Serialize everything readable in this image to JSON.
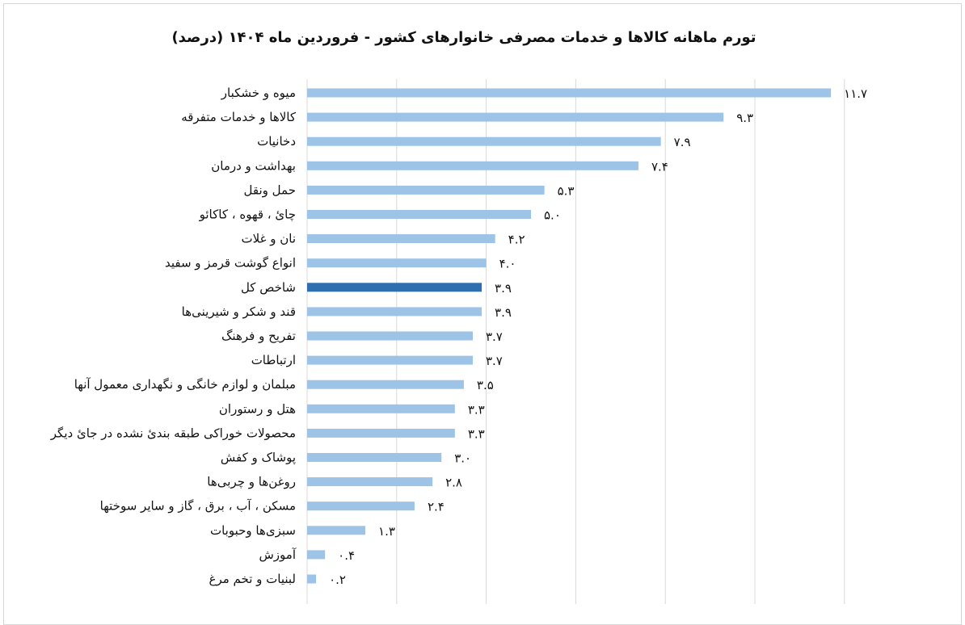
{
  "chart_data": {
    "type": "bar",
    "orientation": "horizontal",
    "title": "تورم ماهانه کالاها و خدمات مصرفی خانوارهای کشور - فروردین ماه ۱۴۰۴ (درصد)",
    "xlabel": "",
    "ylabel": "",
    "xlim": [
      0,
      12
    ],
    "grid": true,
    "legend": "none",
    "bar_color": "#9dc3e6",
    "highlight_color": "#2e6fb0",
    "highlight_index": 8,
    "categories": [
      "میوه و خشکبار",
      "کالاها و خدمات متفرقه",
      "دخانیات",
      "بهداشت و درمان",
      "حمل ونقل",
      "چائ ، قهوه ، کاکائو",
      "نان و غلات",
      "انواع گوشت قرمز و سفید",
      "شاخص کل",
      "قند و شکر و شیرینی‌ها",
      "تفریح و فرهنگ",
      "ارتباطات",
      "مبلمان و لوازم خانگی و نگهداری معمول آنها",
      "هتل و رستوران",
      "محصولات خوراکی طبقه بندیٔ نشده در جائ دیگر",
      "پوشاک و کفش",
      "روغن‌ها و چربی‌ها",
      "مسکن ، آب ، برق ، گاز و سایر سوختها",
      "سبزی‌ها وحبوبات",
      "آموزش",
      "لبنیات و تخم مرغ"
    ],
    "values": [
      11.7,
      9.3,
      7.9,
      7.4,
      5.3,
      5.0,
      4.2,
      4.0,
      3.9,
      3.9,
      3.7,
      3.7,
      3.5,
      3.3,
      3.3,
      3.0,
      2.8,
      2.4,
      1.3,
      0.4,
      0.2
    ],
    "value_labels": [
      "۱۱.۷",
      "۹.۳",
      "۷.۹",
      "۷.۴",
      "۵.۳",
      "۵.۰",
      "۴.۲",
      "۴.۰",
      "۳.۹",
      "۳.۹",
      "۳.۷",
      "۳.۷",
      "۳.۵",
      "۳.۳",
      "۳.۳",
      "۳.۰",
      "۲.۸",
      "۲.۴",
      "۱.۳",
      "۰.۴",
      "۰.۲"
    ]
  }
}
